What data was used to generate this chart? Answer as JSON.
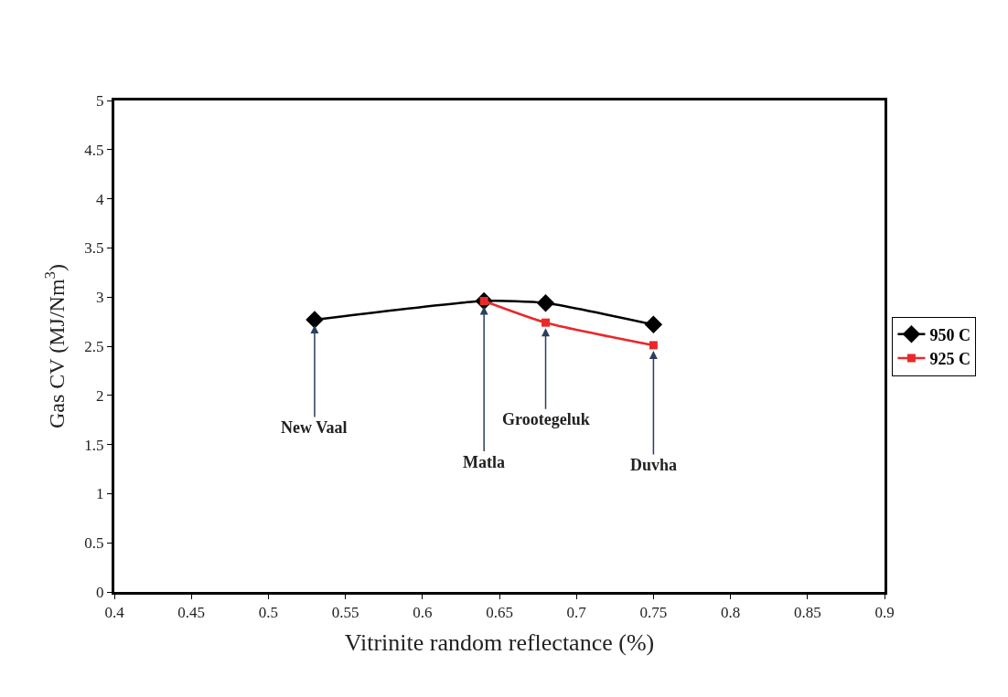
{
  "chart_data": {
    "type": "line",
    "xlabel": "Vitrinite random reflectance (%)",
    "ylabel": "Gas CV (MJ/Nm$^{3}$)",
    "xlim": [
      0.4,
      0.9
    ],
    "xticks": [
      0.4,
      0.45,
      0.5,
      0.55,
      0.6,
      0.65,
      0.7,
      0.75,
      0.8,
      0.85,
      0.9
    ],
    "ylim": [
      0,
      5
    ],
    "yticks": [
      0,
      0.5,
      1,
      1.5,
      2,
      2.5,
      3,
      3.5,
      4,
      4.5,
      5
    ],
    "legend": "right",
    "line_style": "solid",
    "series": [
      {
        "name": "950 C",
        "color": "#000000",
        "marker": "diamond",
        "x": [
          0.53,
          0.64,
          0.68,
          0.75
        ],
        "values": [
          2.77,
          2.96,
          2.94,
          2.72
        ]
      },
      {
        "name": "925 C",
        "color": "#e8292b",
        "marker": "square",
        "x": [
          0.64,
          0.68,
          0.75
        ],
        "values": [
          2.96,
          2.74,
          2.51
        ]
      }
    ],
    "annotations": [
      {
        "text": "New Vaal",
        "x": 0.53,
        "y": 2.77
      },
      {
        "text": "Matla",
        "x": 0.64,
        "y": 2.96
      },
      {
        "text": "Grootegeluk",
        "x": 0.68,
        "y": 2.74
      },
      {
        "text": "Duvha",
        "x": 0.75,
        "y": 2.51
      }
    ]
  }
}
